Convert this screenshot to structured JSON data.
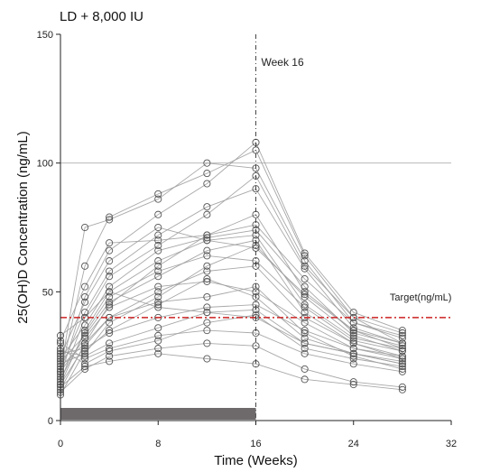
{
  "chart_data": {
    "type": "scatter",
    "title": "LD + 8,000 IU",
    "xlabel": "Time (Weeks)",
    "ylabel": "25(OH)D Concentration (ng/mL)",
    "xlim": [
      0,
      32
    ],
    "ylim": [
      0,
      150
    ],
    "xticks": [
      "0",
      "8",
      "16",
      "24",
      "32"
    ],
    "yticks": [
      "0",
      "50",
      "100",
      "150"
    ],
    "reference_line_y": 100,
    "dosing_period": [
      0,
      16
    ],
    "week_marker": {
      "x": 16,
      "label": "Week 16"
    },
    "target": {
      "y": 40,
      "label": "Target(ng/mL)"
    },
    "subjects": [
      [
        [
          0,
          10
        ],
        [
          2,
          27
        ],
        [
          4,
          35
        ],
        [
          8,
          45
        ],
        [
          12,
          55
        ],
        [
          16,
          48
        ],
        [
          20,
          32
        ],
        [
          24,
          26
        ],
        [
          28,
          22
        ]
      ],
      [
        [
          0,
          12
        ],
        [
          2,
          30
        ],
        [
          4,
          40
        ],
        [
          8,
          50
        ],
        [
          12,
          58
        ],
        [
          16,
          60
        ],
        [
          20,
          40
        ],
        [
          24,
          30
        ],
        [
          28,
          25
        ]
      ],
      [
        [
          0,
          14
        ],
        [
          2,
          35
        ],
        [
          4,
          50
        ],
        [
          8,
          62
        ],
        [
          12,
          70
        ],
        [
          16,
          72
        ],
        [
          20,
          45
        ],
        [
          24,
          32
        ],
        [
          28,
          28
        ]
      ],
      [
        [
          0,
          15
        ],
        [
          2,
          40
        ],
        [
          4,
          56
        ],
        [
          8,
          68
        ],
        [
          12,
          80
        ],
        [
          16,
          95
        ],
        [
          20,
          60
        ],
        [
          24,
          40
        ],
        [
          28,
          30
        ]
      ],
      [
        [
          0,
          17
        ],
        [
          2,
          48
        ],
        [
          4,
          66
        ],
        [
          8,
          80
        ],
        [
          12,
          92
        ],
        [
          16,
          108
        ],
        [
          20,
          65
        ],
        [
          24,
          42
        ],
        [
          28,
          35
        ]
      ],
      [
        [
          0,
          18
        ],
        [
          2,
          60
        ],
        [
          4,
          79
        ],
        [
          8,
          88
        ],
        [
          12,
          96
        ],
        [
          16,
          105
        ],
        [
          20,
          64
        ],
        [
          24,
          40
        ],
        [
          28,
          34
        ]
      ],
      [
        [
          0,
          19
        ],
        [
          2,
          75
        ],
        [
          4,
          78
        ],
        [
          8,
          86
        ],
        [
          12,
          100
        ],
        [
          16,
          98
        ],
        [
          20,
          62
        ],
        [
          24,
          38
        ],
        [
          28,
          32
        ]
      ],
      [
        [
          0,
          20
        ],
        [
          2,
          42
        ],
        [
          4,
          58
        ],
        [
          8,
          72
        ],
        [
          12,
          83
        ],
        [
          16,
          90
        ],
        [
          20,
          59
        ],
        [
          24,
          36
        ],
        [
          28,
          30
        ]
      ],
      [
        [
          0,
          21
        ],
        [
          2,
          30
        ],
        [
          4,
          45
        ],
        [
          8,
          60
        ],
        [
          12,
          72
        ],
        [
          16,
          80
        ],
        [
          20,
          50
        ],
        [
          24,
          35
        ],
        [
          28,
          28
        ]
      ],
      [
        [
          0,
          22
        ],
        [
          2,
          26
        ],
        [
          4,
          38
        ],
        [
          8,
          48
        ],
        [
          12,
          60
        ],
        [
          16,
          68
        ],
        [
          20,
          48
        ],
        [
          24,
          33
        ],
        [
          28,
          27
        ]
      ],
      [
        [
          0,
          23
        ],
        [
          2,
          33
        ],
        [
          4,
          46
        ],
        [
          8,
          56
        ],
        [
          12,
          66
        ],
        [
          16,
          70
        ],
        [
          20,
          42
        ],
        [
          24,
          30
        ],
        [
          28,
          24
        ]
      ],
      [
        [
          0,
          24
        ],
        [
          2,
          37
        ],
        [
          4,
          52
        ],
        [
          8,
          66
        ],
        [
          12,
          71
        ],
        [
          16,
          74
        ],
        [
          20,
          52
        ],
        [
          24,
          34
        ],
        [
          28,
          29
        ]
      ],
      [
        [
          0,
          26
        ],
        [
          2,
          28
        ],
        [
          4,
          34
        ],
        [
          8,
          40
        ],
        [
          12,
          44
        ],
        [
          16,
          45
        ],
        [
          20,
          35
        ],
        [
          24,
          28
        ],
        [
          28,
          25
        ]
      ],
      [
        [
          0,
          27
        ],
        [
          2,
          25
        ],
        [
          4,
          30
        ],
        [
          8,
          36
        ],
        [
          12,
          42
        ],
        [
          16,
          43
        ],
        [
          20,
          30
        ],
        [
          24,
          26
        ],
        [
          28,
          22
        ]
      ],
      [
        [
          0,
          28
        ],
        [
          2,
          22
        ],
        [
          4,
          27
        ],
        [
          8,
          31
        ],
        [
          12,
          38
        ],
        [
          16,
          41
        ],
        [
          20,
          28
        ],
        [
          24,
          24
        ],
        [
          28,
          21
        ]
      ],
      [
        [
          0,
          30
        ],
        [
          2,
          24
        ],
        [
          4,
          28
        ],
        [
          8,
          33
        ],
        [
          12,
          35
        ],
        [
          16,
          34
        ],
        [
          20,
          26
        ],
        [
          24,
          22
        ],
        [
          28,
          19
        ]
      ],
      [
        [
          0,
          11
        ],
        [
          2,
          20
        ],
        [
          4,
          25
        ],
        [
          8,
          28
        ],
        [
          12,
          30
        ],
        [
          16,
          29
        ],
        [
          20,
          20
        ],
        [
          24,
          15
        ],
        [
          28,
          13
        ]
      ],
      [
        [
          0,
          13
        ],
        [
          2,
          21
        ],
        [
          4,
          23
        ],
        [
          8,
          26
        ],
        [
          12,
          24
        ],
        [
          16,
          22
        ],
        [
          20,
          16
        ],
        [
          24,
          14
        ],
        [
          28,
          12
        ]
      ],
      [
        [
          0,
          16
        ],
        [
          2,
          34
        ],
        [
          4,
          48
        ],
        [
          8,
          58
        ],
        [
          12,
          64
        ],
        [
          16,
          62
        ],
        [
          20,
          44
        ],
        [
          24,
          31
        ],
        [
          28,
          27
        ]
      ],
      [
        [
          0,
          25
        ],
        [
          2,
          46
        ],
        [
          4,
          62
        ],
        [
          8,
          75
        ],
        [
          12,
          70
        ],
        [
          16,
          67
        ],
        [
          20,
          49
        ],
        [
          24,
          35
        ],
        [
          28,
          30
        ]
      ],
      [
        [
          0,
          31
        ],
        [
          2,
          52
        ],
        [
          4,
          69
        ],
        [
          8,
          70
        ],
        [
          12,
          72
        ],
        [
          16,
          76
        ],
        [
          20,
          55
        ],
        [
          24,
          38
        ],
        [
          28,
          33
        ]
      ],
      [
        [
          0,
          33
        ],
        [
          2,
          40
        ],
        [
          4,
          50
        ],
        [
          8,
          44
        ],
        [
          12,
          42
        ],
        [
          16,
          40
        ],
        [
          20,
          30
        ],
        [
          24,
          26
        ],
        [
          28,
          23
        ]
      ],
      [
        [
          0,
          19
        ],
        [
          2,
          32
        ],
        [
          4,
          44
        ],
        [
          8,
          52
        ],
        [
          12,
          54
        ],
        [
          16,
          50
        ],
        [
          20,
          38
        ],
        [
          24,
          28
        ],
        [
          28,
          24
        ]
      ],
      [
        [
          0,
          14
        ],
        [
          2,
          29
        ],
        [
          4,
          40
        ],
        [
          8,
          46
        ],
        [
          12,
          48
        ],
        [
          16,
          52
        ],
        [
          20,
          34
        ],
        [
          24,
          25
        ],
        [
          28,
          20
        ]
      ]
    ],
    "colors": {
      "axis": "#222222",
      "series_line": "#9e9e9e",
      "marker": "#555555",
      "target": "#cc2222",
      "dosing_bar": "#6e6a6c",
      "reference": "#b8b8b8"
    }
  }
}
